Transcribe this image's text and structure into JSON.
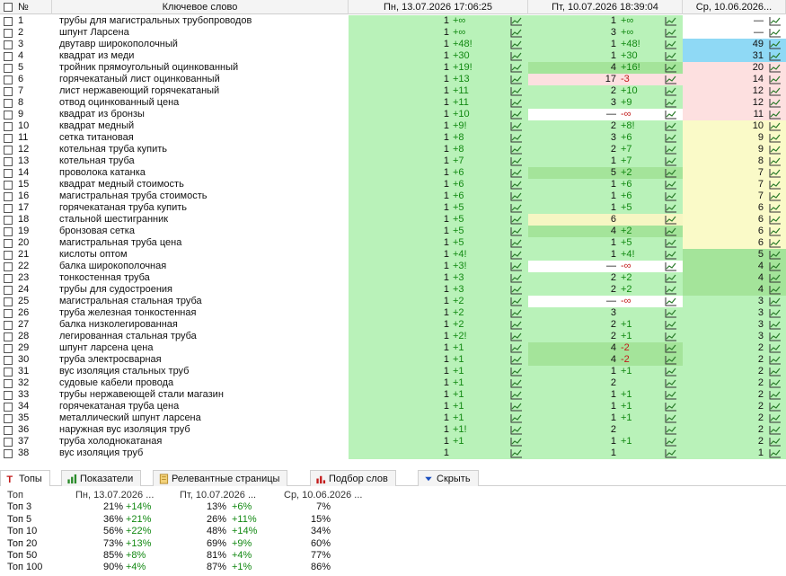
{
  "header": {
    "num": "№",
    "keyword": "Ключевое слово",
    "date1": "Пн, 13.07.2026 17:06:25",
    "date2": "Пт, 10.07.2026 18:39:04",
    "date3": "Ср, 10.06.2026..."
  },
  "rows": [
    {
      "n": "1",
      "kw": "трубы для магистральных трубопроводов",
      "p1": "1",
      "c1": "+∞",
      "p2": "1",
      "c2": "+∞",
      "p3": "—",
      "bg1": "g",
      "bg2": "g",
      "bg3": "e"
    },
    {
      "n": "2",
      "kw": "шпунт Ларсена",
      "p1": "1",
      "c1": "+∞",
      "p2": "3",
      "c2": "+∞",
      "p3": "—",
      "bg1": "g",
      "bg2": "g",
      "bg3": "e"
    },
    {
      "n": "3",
      "kw": "двутавр широкополочный",
      "p1": "1",
      "c1": "+48!",
      "p2": "1",
      "c2": "+48!",
      "p3": "49",
      "bg1": "g",
      "bg2": "g",
      "bg3": "b"
    },
    {
      "n": "4",
      "kw": "квадрат из меди",
      "p1": "1",
      "c1": "+30",
      "p2": "1",
      "c2": "+30",
      "p3": "31",
      "bg1": "g",
      "bg2": "g",
      "bg3": "b"
    },
    {
      "n": "5",
      "kw": "тройник прямоугольный оцинкованный",
      "p1": "1",
      "c1": "+19!",
      "p2": "4",
      "c2": "+16!",
      "p3": "20",
      "bg1": "g",
      "bg2": "gg",
      "bg3": "p"
    },
    {
      "n": "6",
      "kw": "горячекатаный лист оцинкованный",
      "p1": "1",
      "c1": "+13",
      "p2": "17",
      "c2": "-3",
      "p3": "14",
      "bg1": "g",
      "bg2": "p",
      "bg3": "p"
    },
    {
      "n": "7",
      "kw": "лист нержавеющий горячекатаный",
      "p1": "1",
      "c1": "+11",
      "p2": "2",
      "c2": "+10",
      "p3": "12",
      "bg1": "g",
      "bg2": "g",
      "bg3": "p"
    },
    {
      "n": "8",
      "kw": "отвод оцинкованный цена",
      "p1": "1",
      "c1": "+11",
      "p2": "3",
      "c2": "+9",
      "p3": "12",
      "bg1": "g",
      "bg2": "g",
      "bg3": "p"
    },
    {
      "n": "9",
      "kw": "квадрат из бронзы",
      "p1": "1",
      "c1": "+10",
      "p2": "—",
      "c2": "-∞",
      "p3": "11",
      "bg1": "g",
      "bg2": "w",
      "bg3": "p"
    },
    {
      "n": "10",
      "kw": "квадрат медный",
      "p1": "1",
      "c1": "+9!",
      "p2": "2",
      "c2": "+8!",
      "p3": "10",
      "bg1": "g",
      "bg2": "g",
      "bg3": "y"
    },
    {
      "n": "11",
      "kw": "сетка титановая",
      "p1": "1",
      "c1": "+8",
      "p2": "3",
      "c2": "+6",
      "p3": "9",
      "bg1": "g",
      "bg2": "g",
      "bg3": "y"
    },
    {
      "n": "12",
      "kw": "котельная труба купить",
      "p1": "1",
      "c1": "+8",
      "p2": "2",
      "c2": "+7",
      "p3": "9",
      "bg1": "g",
      "bg2": "g",
      "bg3": "y"
    },
    {
      "n": "13",
      "kw": "котельная труба",
      "p1": "1",
      "c1": "+7",
      "p2": "1",
      "c2": "+7",
      "p3": "8",
      "bg1": "g",
      "bg2": "g",
      "bg3": "y"
    },
    {
      "n": "14",
      "kw": "проволока катанка",
      "p1": "1",
      "c1": "+6",
      "p2": "5",
      "c2": "+2",
      "p3": "7",
      "bg1": "g",
      "bg2": "gg",
      "bg3": "y"
    },
    {
      "n": "15",
      "kw": "квадрат медный стоимость",
      "p1": "1",
      "c1": "+6",
      "p2": "1",
      "c2": "+6",
      "p3": "7",
      "bg1": "g",
      "bg2": "g",
      "bg3": "y"
    },
    {
      "n": "16",
      "kw": "магистральная труба стоимость",
      "p1": "1",
      "c1": "+6",
      "p2": "1",
      "c2": "+6",
      "p3": "7",
      "bg1": "g",
      "bg2": "g",
      "bg3": "y"
    },
    {
      "n": "17",
      "kw": "горячекатаная труба купить",
      "p1": "1",
      "c1": "+5",
      "p2": "1",
      "c2": "+5",
      "p3": "6",
      "bg1": "g",
      "bg2": "g",
      "bg3": "y"
    },
    {
      "n": "18",
      "kw": "стальной шестигранник",
      "p1": "1",
      "c1": "+5",
      "p2": "6",
      "c2": "",
      "p3": "6",
      "bg1": "g",
      "bg2": "ly",
      "bg3": "y"
    },
    {
      "n": "19",
      "kw": "бронзовая сетка",
      "p1": "1",
      "c1": "+5",
      "p2": "4",
      "c2": "+2",
      "p3": "6",
      "bg1": "g",
      "bg2": "gg",
      "bg3": "y"
    },
    {
      "n": "20",
      "kw": "магистральная труба цена",
      "p1": "1",
      "c1": "+5",
      "p2": "1",
      "c2": "+5",
      "p3": "6",
      "bg1": "g",
      "bg2": "g",
      "bg3": "y"
    },
    {
      "n": "21",
      "kw": "кислоты оптом",
      "p1": "1",
      "c1": "+4!",
      "p2": "1",
      "c2": "+4!",
      "p3": "5",
      "bg1": "g",
      "bg2": "g",
      "bg3": "gg"
    },
    {
      "n": "22",
      "kw": "балка широкополочная",
      "p1": "1",
      "c1": "+3!",
      "p2": "—",
      "c2": "-∞",
      "p3": "4",
      "bg1": "g",
      "bg2": "w",
      "bg3": "gg"
    },
    {
      "n": "23",
      "kw": "тонкостенная труба",
      "p1": "1",
      "c1": "+3",
      "p2": "2",
      "c2": "+2",
      "p3": "4",
      "bg1": "g",
      "bg2": "g",
      "bg3": "gg"
    },
    {
      "n": "24",
      "kw": "трубы для судостроения",
      "p1": "1",
      "c1": "+3",
      "p2": "2",
      "c2": "+2",
      "p3": "4",
      "bg1": "g",
      "bg2": "g",
      "bg3": "gg"
    },
    {
      "n": "25",
      "kw": "магистральная стальная труба",
      "p1": "1",
      "c1": "+2",
      "p2": "—",
      "c2": "-∞",
      "p3": "3",
      "bg1": "g",
      "bg2": "w",
      "bg3": "g"
    },
    {
      "n": "26",
      "kw": "труба железная тонкостенная",
      "p1": "1",
      "c1": "+2",
      "p2": "3",
      "c2": "",
      "p3": "3",
      "bg1": "g",
      "bg2": "g",
      "bg3": "g"
    },
    {
      "n": "27",
      "kw": "балка низколегированная",
      "p1": "1",
      "c1": "+2",
      "p2": "2",
      "c2": "+1",
      "p3": "3",
      "bg1": "g",
      "bg2": "g",
      "bg3": "g"
    },
    {
      "n": "28",
      "kw": "легированная стальная труба",
      "p1": "1",
      "c1": "+2!",
      "p2": "2",
      "c2": "+1",
      "p3": "3",
      "bg1": "g",
      "bg2": "g",
      "bg3": "g"
    },
    {
      "n": "29",
      "kw": "шпунт ларсена цена",
      "p1": "1",
      "c1": "+1",
      "p2": "4",
      "c2": "-2",
      "p3": "2",
      "bg1": "g",
      "bg2": "gg",
      "bg3": "g"
    },
    {
      "n": "30",
      "kw": "труба электросварная",
      "p1": "1",
      "c1": "+1",
      "p2": "4",
      "c2": "-2",
      "p3": "2",
      "bg1": "g",
      "bg2": "gg",
      "bg3": "g"
    },
    {
      "n": "31",
      "kw": "вус изоляция стальных труб",
      "p1": "1",
      "c1": "+1",
      "p2": "1",
      "c2": "+1",
      "p3": "2",
      "bg1": "g",
      "bg2": "g",
      "bg3": "g"
    },
    {
      "n": "32",
      "kw": "судовые кабели провода",
      "p1": "1",
      "c1": "+1",
      "p2": "2",
      "c2": "",
      "p3": "2",
      "bg1": "g",
      "bg2": "g",
      "bg3": "g"
    },
    {
      "n": "33",
      "kw": "трубы нержавеющей стали магазин",
      "p1": "1",
      "c1": "+1",
      "p2": "1",
      "c2": "+1",
      "p3": "2",
      "bg1": "g",
      "bg2": "g",
      "bg3": "g"
    },
    {
      "n": "34",
      "kw": "горячекатаная труба цена",
      "p1": "1",
      "c1": "+1",
      "p2": "1",
      "c2": "+1",
      "p3": "2",
      "bg1": "g",
      "bg2": "g",
      "bg3": "g"
    },
    {
      "n": "35",
      "kw": "металлический шпунт ларсена",
      "p1": "1",
      "c1": "+1",
      "p2": "1",
      "c2": "+1",
      "p3": "2",
      "bg1": "g",
      "bg2": "g",
      "bg3": "g"
    },
    {
      "n": "36",
      "kw": "наружная вус изоляция труб",
      "p1": "1",
      "c1": "+1!",
      "p2": "2",
      "c2": "",
      "p3": "2",
      "bg1": "g",
      "bg2": "g",
      "bg3": "g"
    },
    {
      "n": "37",
      "kw": "труба холоднокатаная",
      "p1": "1",
      "c1": "+1",
      "p2": "1",
      "c2": "+1",
      "p3": "2",
      "bg1": "g",
      "bg2": "g",
      "bg3": "g"
    },
    {
      "n": "38",
      "kw": "вус изоляция труб",
      "p1": "1",
      "c1": "",
      "p2": "1",
      "c2": "",
      "p3": "1",
      "bg1": "g",
      "bg2": "g",
      "bg3": "g"
    }
  ],
  "tabs": [
    {
      "label": "Топы",
      "icon": "top-icon"
    },
    {
      "label": "Показатели",
      "icon": "bar-chart-icon"
    },
    {
      "label": "Релевантные страницы",
      "icon": "pages-icon"
    },
    {
      "label": "Подбор слов",
      "icon": "words-chart-icon"
    },
    {
      "label": "Скрыть",
      "icon": "hide-arrow-icon"
    }
  ],
  "stats": {
    "header": {
      "label": "Топ",
      "d1": "Пн, 13.07.2026 ...",
      "d2": "Пт, 10.07.2026 ...",
      "d3": "Ср, 10.06.2026 ..."
    },
    "rows": [
      {
        "label": "Топ 3",
        "v1": "21%",
        "c1": "+14%",
        "v2": "13%",
        "c2": "+6%",
        "v3": "7%"
      },
      {
        "label": "Топ 5",
        "v1": "36%",
        "c1": "+21%",
        "v2": "26%",
        "c2": "+11%",
        "v3": "15%"
      },
      {
        "label": "Топ 10",
        "v1": "56%",
        "c1": "+22%",
        "v2": "48%",
        "c2": "+14%",
        "v3": "34%"
      },
      {
        "label": "Топ 20",
        "v1": "73%",
        "c1": "+13%",
        "v2": "69%",
        "c2": "+9%",
        "v3": "60%"
      },
      {
        "label": "Топ 50",
        "v1": "85%",
        "c1": "+8%",
        "v2": "81%",
        "c2": "+4%",
        "v3": "77%"
      },
      {
        "label": "Топ 100",
        "v1": "90%",
        "c1": "+4%",
        "v2": "87%",
        "c2": "+1%",
        "v3": "86%"
      }
    ]
  },
  "colors": {
    "g": "#b9f2b9",
    "gg": "#a4e49a",
    "w": "#ffffff",
    "p": "#fde0e0",
    "y": "#fafac8",
    "ly": "#f6f6c3",
    "b": "#8fd9f5",
    "e": "#ffffff",
    "up": "#118811",
    "down": "#c21a1a"
  }
}
